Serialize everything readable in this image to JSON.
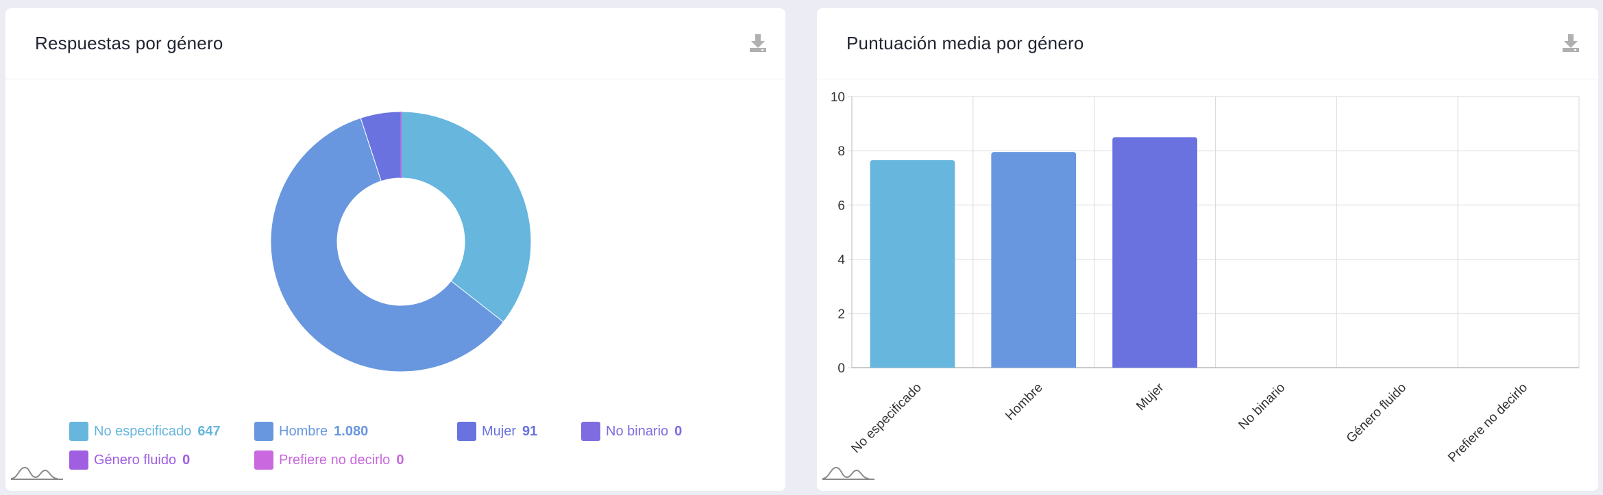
{
  "colors": {
    "no_especificado": "#67B6DE",
    "hombre": "#6897DF",
    "mujer": "#6972DF",
    "no_binario": "#7F6CE0",
    "genero_fluido": "#A05FE0",
    "prefiere_no_decirlo": "#C968DF",
    "grid": "#DADADA",
    "axis": "#B8B8B8"
  },
  "left_card": {
    "title": "Respuestas por género",
    "download_icon": "download-icon",
    "legend": [
      {
        "label": "No especificado",
        "value": "647",
        "color": "#67B6DE"
      },
      {
        "label": "Hombre",
        "value": "1.080",
        "color": "#6897DF"
      },
      {
        "label": "Mujer",
        "value": "91",
        "color": "#6972DF"
      },
      {
        "label": "No binario",
        "value": "0",
        "color": "#7F6CE0"
      },
      {
        "label": "Género fluido",
        "value": "0",
        "color": "#A05FE0"
      },
      {
        "label": "Prefiere no decirlo",
        "value": "0",
        "color": "#C968DF"
      }
    ]
  },
  "right_card": {
    "title": "Puntuación media por género",
    "download_icon": "download-icon"
  },
  "chart_data": [
    {
      "type": "pie",
      "variant": "donut",
      "labels": [
        "No especificado",
        "Hombre",
        "Mujer",
        "No binario",
        "Género fluido",
        "Prefiere no decirlo"
      ],
      "values": [
        647,
        1080,
        91,
        0,
        0,
        0
      ],
      "colors": [
        "#67B6DE",
        "#6897DF",
        "#6972DF",
        "#7F6CE0",
        "#A05FE0",
        "#C968DF"
      ],
      "legend_position": "bottom"
    },
    {
      "type": "bar",
      "categories": [
        "No especificado",
        "Hombre",
        "Mujer",
        "No binario",
        "Género fluido",
        "Prefiere no decirlo"
      ],
      "values": [
        7.65,
        7.95,
        8.5,
        0,
        0,
        0
      ],
      "colors": [
        "#67B6DE",
        "#6897DF",
        "#6972DF",
        "#7F6CE0",
        "#A05FE0",
        "#C968DF"
      ],
      "ylim": [
        0,
        10
      ],
      "yticks": [
        "0",
        "2",
        "4",
        "6",
        "8",
        "10"
      ],
      "grid": true,
      "xlabel_rotation": "-45"
    }
  ]
}
